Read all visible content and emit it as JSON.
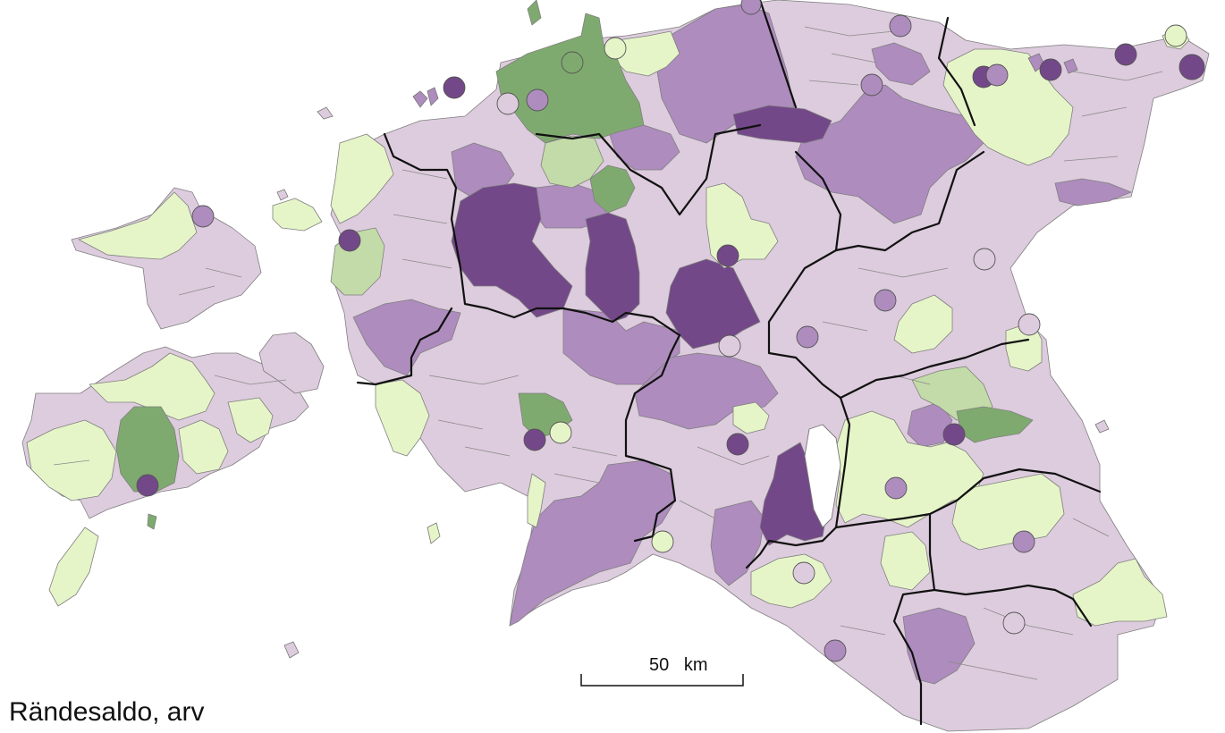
{
  "title": "Rändesaldo, arv",
  "scale_bar": {
    "value": "50",
    "unit": "km"
  },
  "colors": {
    "dark_purple": "#734888",
    "medium_purple": "#ae8cbe",
    "light_purple": "#ddccdd",
    "pale_green": "#e6f5c8",
    "light_green": "#c3dba8",
    "medium_green": "#7faa6f",
    "border": "#111111"
  },
  "legend_classes": [
    "dark_purple",
    "medium_purple",
    "light_purple",
    "pale_green",
    "light_green",
    "medium_green"
  ]
}
